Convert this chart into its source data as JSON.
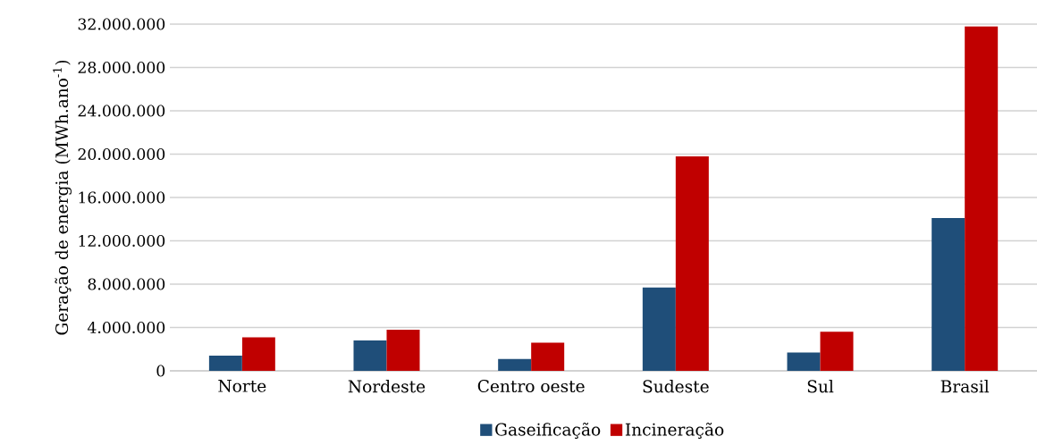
{
  "chart_data": {
    "type": "bar",
    "ylabel": "Geração de energia (MWh.ano$^{-1}$)",
    "categories": [
      "Norte",
      "Nordeste",
      "Centro oeste",
      "Sudeste",
      "Sul",
      "Brasil"
    ],
    "series": [
      {
        "name": "Gaseificação",
        "color": "#1f4e79",
        "values": [
          1400000,
          2800000,
          1100000,
          7700000,
          1700000,
          14100000
        ]
      },
      {
        "name": "Incineração",
        "color": "#c00000",
        "values": [
          3100000,
          3800000,
          2600000,
          19800000,
          3600000,
          31800000
        ]
      }
    ],
    "ylim": [
      0,
      32000000
    ],
    "yticks": [
      {
        "value": 0,
        "label": "0"
      },
      {
        "value": 4000000,
        "label": "4.000.000"
      },
      {
        "value": 8000000,
        "label": "8.000.000"
      },
      {
        "value": 12000000,
        "label": "12.000.000"
      },
      {
        "value": 16000000,
        "label": "16.000.000"
      },
      {
        "value": 20000000,
        "label": "20.000.000"
      },
      {
        "value": 24000000,
        "label": "24.000.000"
      },
      {
        "value": 28000000,
        "label": "28.000.000"
      },
      {
        "value": 32000000,
        "label": "32.000.000"
      }
    ],
    "grid": "y",
    "legend": "bottom"
  }
}
